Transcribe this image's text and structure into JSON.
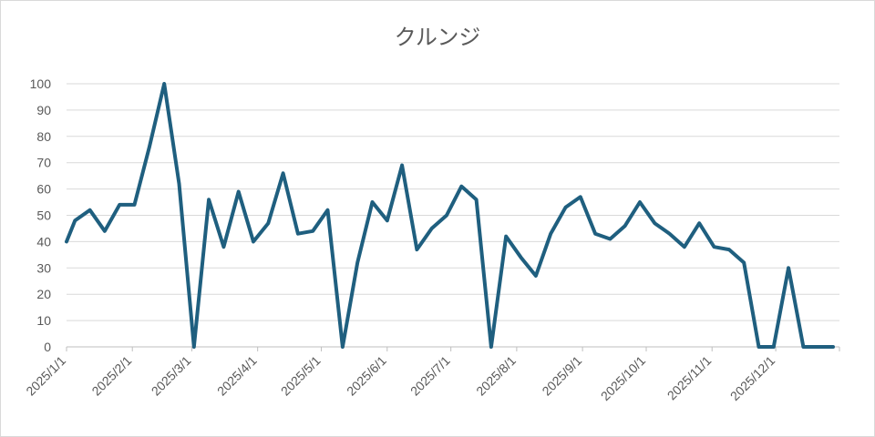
{
  "chart_data": {
    "type": "line",
    "title": "クルンジ",
    "xlabel": "",
    "ylabel": "",
    "ylim": [
      0,
      100
    ],
    "yticks": [
      0,
      10,
      20,
      30,
      40,
      50,
      60,
      70,
      80,
      90,
      100
    ],
    "xlim": [
      "2025-01-01",
      "2025-12-31"
    ],
    "xtick_labels": [
      "2025/1/1",
      "2025/2/1",
      "2025/3/1",
      "2025/4/1",
      "2025/5/1",
      "2025/6/1",
      "2025/7/1",
      "2025/8/1",
      "2025/9/1",
      "2025/10/1",
      "2025/11/1",
      "2025/12/1"
    ],
    "xtick_dates": [
      "2025-01-01",
      "2025-02-01",
      "2025-03-01",
      "2025-04-01",
      "2025-05-01",
      "2025-06-01",
      "2025-07-01",
      "2025-08-01",
      "2025-09-01",
      "2025-10-01",
      "2025-11-01",
      "2025-12-01"
    ],
    "grid": true,
    "series": [
      {
        "color": "#1f5f7f",
        "x": [
          "2025-01-01",
          "2025-01-05",
          "2025-01-12",
          "2025-01-19",
          "2025-01-26",
          "2025-02-02",
          "2025-02-09",
          "2025-02-16",
          "2025-02-23",
          "2025-03-02",
          "2025-03-09",
          "2025-03-16",
          "2025-03-23",
          "2025-03-30",
          "2025-04-06",
          "2025-04-13",
          "2025-04-20",
          "2025-04-27",
          "2025-05-04",
          "2025-05-11",
          "2025-05-18",
          "2025-05-25",
          "2025-06-01",
          "2025-06-08",
          "2025-06-15",
          "2025-06-22",
          "2025-06-29",
          "2025-07-06",
          "2025-07-13",
          "2025-07-20",
          "2025-07-27",
          "2025-08-03",
          "2025-08-10",
          "2025-08-17",
          "2025-08-24",
          "2025-08-31",
          "2025-09-07",
          "2025-09-14",
          "2025-09-21",
          "2025-09-28",
          "2025-10-05",
          "2025-10-12",
          "2025-10-19",
          "2025-10-26",
          "2025-11-02",
          "2025-11-09",
          "2025-11-16",
          "2025-11-23",
          "2025-11-30",
          "2025-12-07",
          "2025-12-14",
          "2025-12-21",
          "2025-12-28"
        ],
        "y": [
          40,
          48,
          52,
          44,
          54,
          54,
          76,
          100,
          62,
          0,
          56,
          38,
          59,
          40,
          47,
          66,
          43,
          44,
          52,
          0,
          32,
          55,
          48,
          69,
          37,
          45,
          50,
          61,
          56,
          0,
          42,
          34,
          27,
          43,
          53,
          57,
          43,
          41,
          46,
          55,
          47,
          43,
          38,
          47,
          38,
          37,
          32,
          0,
          0,
          30,
          0,
          0,
          0
        ]
      }
    ]
  }
}
